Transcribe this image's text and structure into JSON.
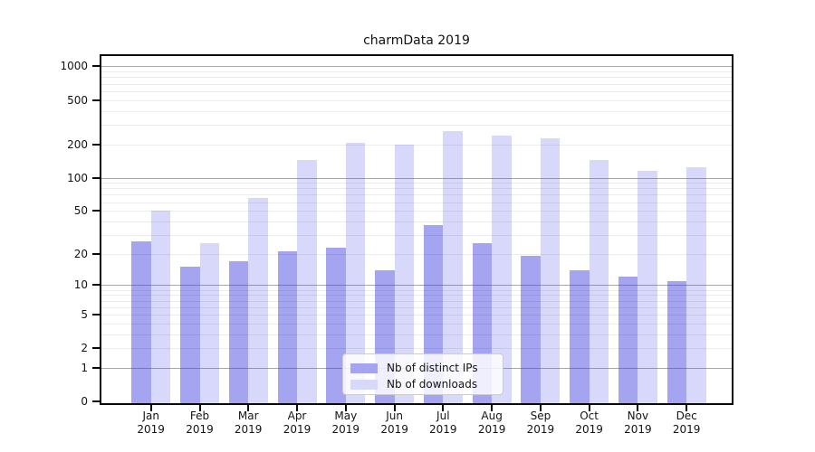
{
  "chart_data": {
    "type": "bar",
    "title": "charmData 2019",
    "x_categories": [
      "Jan",
      "Feb",
      "Mar",
      "Apr",
      "May",
      "Jun",
      "Jul",
      "Aug",
      "Sep",
      "Oct",
      "Nov",
      "Dec"
    ],
    "x_year_label": "2019",
    "series": [
      {
        "name": "Nb of distinct IPs",
        "color": "#a4a4f0",
        "values": [
          26,
          15,
          17,
          21,
          23,
          14,
          37,
          25,
          19,
          14,
          12,
          11
        ]
      },
      {
        "name": "Nb of downloads",
        "color": "#d8d8fa",
        "values": [
          50,
          25,
          65,
          145,
          205,
          200,
          265,
          240,
          225,
          145,
          116,
          125
        ]
      }
    ],
    "y_axis": {
      "scale": "symlog, position = log10(1+value)",
      "tick_labels": [
        1000,
        500,
        200,
        100,
        50,
        20,
        10,
        5,
        2,
        1,
        0
      ],
      "range": [
        0,
        1240
      ],
      "grid": "minor lines each 2-9 per decade, darker lines at 1/10/100/1000"
    },
    "legend_position": "bottom-center",
    "colors": {
      "grid_major": "#b5b5b5",
      "grid_minor": "#eaeaea",
      "spine": "#0a0a0a",
      "background": "#ffffff"
    }
  }
}
